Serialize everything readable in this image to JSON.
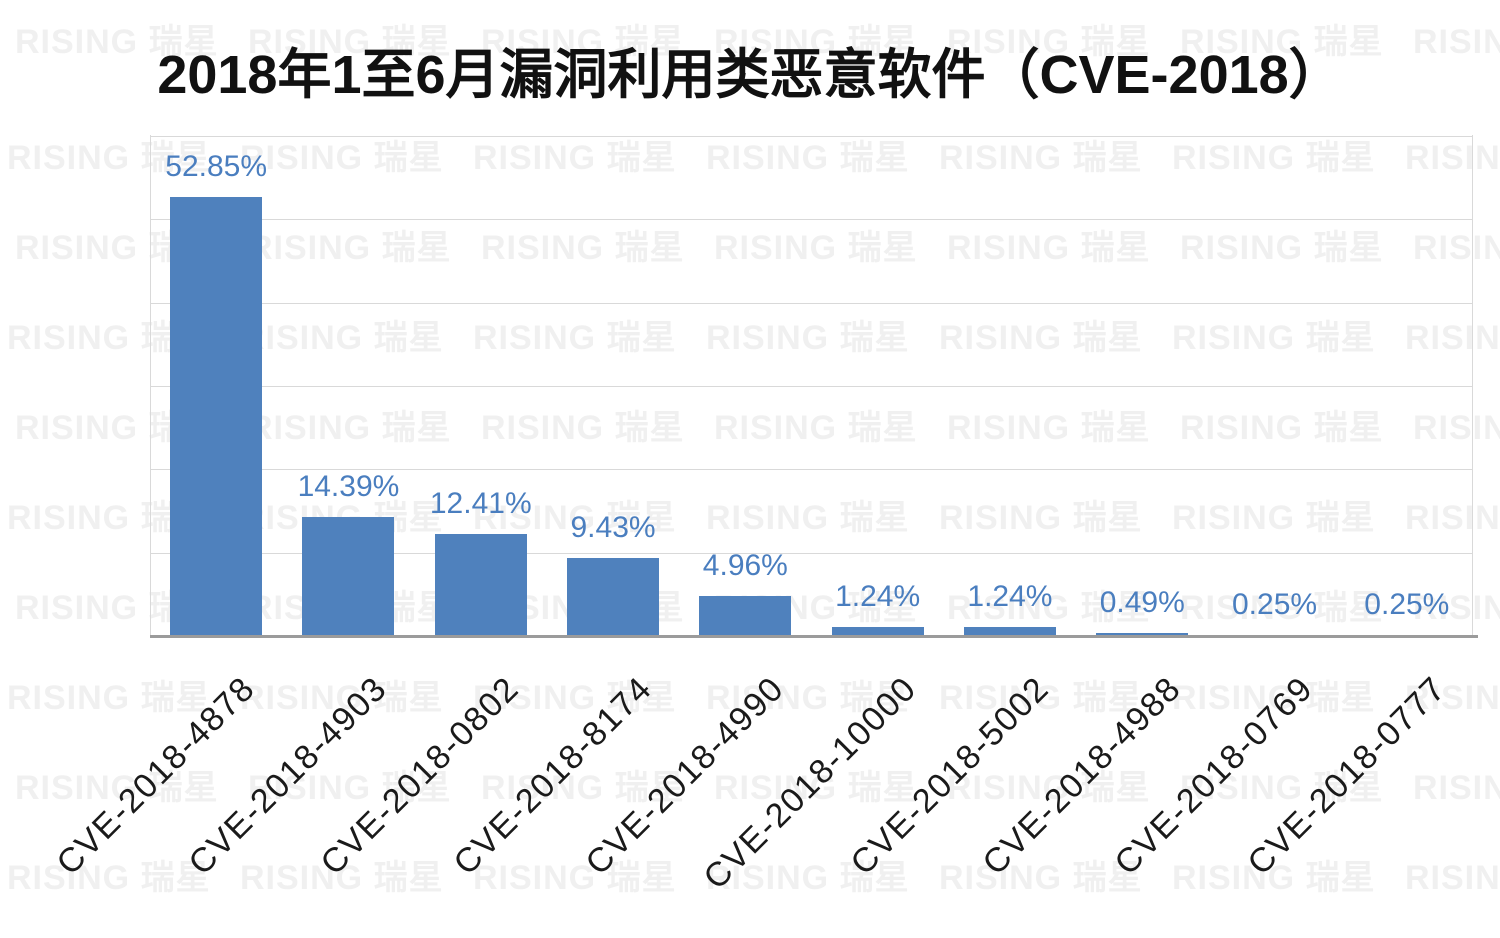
{
  "title": "2018年1至6月漏洞利用类恶意软件（CVE-2018）",
  "watermark": {
    "text": "RISING 瑞星"
  },
  "chart_data": {
    "type": "bar",
    "title": "2018年1至6月漏洞利用类恶意软件（CVE-2018）",
    "categories": [
      "CVE-2018-4878",
      "CVE-2018-4903",
      "CVE-2018-0802",
      "CVE-2018-8174",
      "CVE-2018-4990",
      "CVE-2018-10000",
      "CVE-2018-5002",
      "CVE-2018-4988",
      "CVE-2018-0769",
      "CVE-2018-0777"
    ],
    "values": [
      52.85,
      14.39,
      12.41,
      9.43,
      4.96,
      1.24,
      1.24,
      0.49,
      0.25,
      0.25
    ],
    "value_labels": [
      "52.85%",
      "14.39%",
      "12.41%",
      "9.43%",
      "4.96%",
      "1.24%",
      "1.24%",
      "0.49%",
      "0.25%",
      "0.25%"
    ],
    "xlabel": "",
    "ylabel": "",
    "ylim": [
      0,
      60
    ],
    "gridlines_pct": [
      10,
      20,
      30,
      40,
      50,
      60
    ],
    "grid": true,
    "legend": false,
    "bar_color": "#4F81BD",
    "label_color": "#4A7EBF",
    "gridline_color": "#d9d9d9",
    "axis_line_color": "#9b9b9b",
    "category_label_rotation_deg": -45
  }
}
